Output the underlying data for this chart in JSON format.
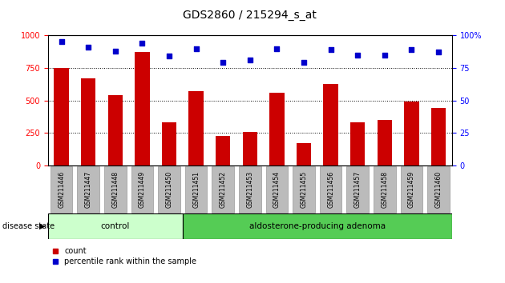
{
  "title": "GDS2860 / 215294_s_at",
  "samples": [
    "GSM211446",
    "GSM211447",
    "GSM211448",
    "GSM211449",
    "GSM211450",
    "GSM211451",
    "GSM211452",
    "GSM211453",
    "GSM211454",
    "GSM211455",
    "GSM211456",
    "GSM211457",
    "GSM211458",
    "GSM211459",
    "GSM211460"
  ],
  "counts": [
    750,
    670,
    540,
    870,
    330,
    570,
    230,
    260,
    560,
    170,
    630,
    330,
    350,
    490,
    440
  ],
  "percentiles": [
    95,
    91,
    88,
    94,
    84,
    90,
    79,
    81,
    90,
    79,
    89,
    85,
    85,
    89,
    87
  ],
  "bar_color": "#cc0000",
  "dot_color": "#0000cc",
  "ylim_left": [
    0,
    1000
  ],
  "ylim_right": [
    0,
    100
  ],
  "yticks_left": [
    0,
    250,
    500,
    750,
    1000
  ],
  "yticks_right": [
    0,
    25,
    50,
    75,
    100
  ],
  "ytick_labels_right": [
    "0",
    "25",
    "50",
    "75",
    "100%"
  ],
  "grid_lines": [
    250,
    500,
    750
  ],
  "control_count": 5,
  "disease_state_label": "disease state",
  "group1_label": "control",
  "group2_label": "aldosterone-producing adenoma",
  "group1_color": "#ccffcc",
  "group2_color": "#55cc55",
  "legend_count_label": "count",
  "legend_pct_label": "percentile rank within the sample",
  "tick_bg_color": "#bbbbbb",
  "figsize": [
    6.3,
    3.54
  ],
  "dpi": 100
}
